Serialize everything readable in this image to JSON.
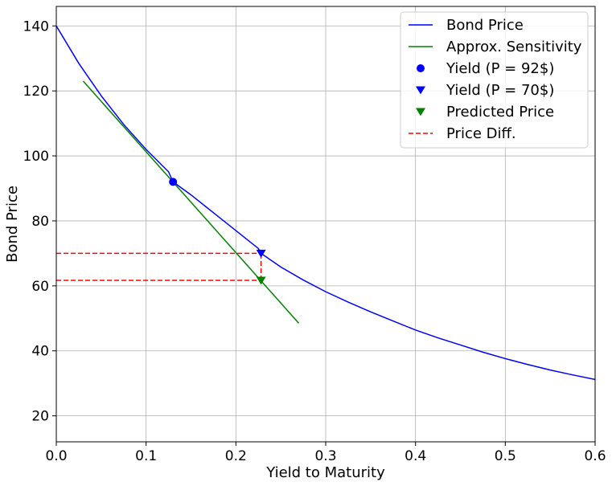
{
  "chart_data": {
    "type": "line",
    "title": "",
    "xlabel": "Yield to Maturity",
    "ylabel": "Bond Price",
    "xlim": [
      0.0,
      0.6
    ],
    "ylim": [
      12,
      146
    ],
    "xticks": [
      0.0,
      0.1,
      0.2,
      0.3,
      0.4,
      0.5,
      0.6
    ],
    "xtick_labels": [
      "0.0",
      "0.1",
      "0.2",
      "0.3",
      "0.4",
      "0.5",
      "0.6"
    ],
    "yticks": [
      20,
      40,
      60,
      80,
      100,
      120,
      140
    ],
    "ytick_labels": [
      "20",
      "40",
      "60",
      "80",
      "100",
      "120",
      "140"
    ],
    "grid": true,
    "legend_position": "top-right",
    "series": [
      {
        "name": "Bond Price",
        "kind": "line",
        "color": "#0000ff",
        "x": [
          0.0,
          0.025,
          0.05,
          0.075,
          0.1,
          0.125,
          0.13,
          0.15,
          0.175,
          0.2,
          0.225,
          0.228,
          0.25,
          0.275,
          0.3,
          0.325,
          0.35,
          0.375,
          0.4,
          0.425,
          0.45,
          0.475,
          0.5,
          0.525,
          0.55,
          0.575,
          0.6
        ],
        "y": [
          140.0,
          128.5,
          118.5,
          109.7,
          102.0,
          95.1,
          92.0,
          88.0,
          82.5,
          77.0,
          71.5,
          70.0,
          65.8,
          61.8,
          58.2,
          55.0,
          52.0,
          49.2,
          46.4,
          44.0,
          41.8,
          39.6,
          37.6,
          35.8,
          34.1,
          32.6,
          31.2
        ]
      },
      {
        "name": "Approx. Sensitivity",
        "kind": "line",
        "color": "#008000",
        "x": [
          0.03,
          0.27
        ],
        "y": [
          123.0,
          48.5
        ]
      },
      {
        "name": "Yield (P = 92$)",
        "kind": "marker",
        "marker": "circle",
        "color": "#0000ff",
        "x": [
          0.13
        ],
        "y": [
          92.0
        ]
      },
      {
        "name": "Yield (P = 70$)",
        "kind": "marker",
        "marker": "triangle-down",
        "color": "#0000ff",
        "x": [
          0.228
        ],
        "y": [
          70.0
        ]
      },
      {
        "name": "Predicted Price",
        "kind": "marker",
        "marker": "triangle-down",
        "color": "#008000",
        "x": [
          0.228
        ],
        "y": [
          61.7
        ]
      },
      {
        "name": "Price Diff.",
        "kind": "dashed",
        "color": "#ff0000",
        "segments": [
          {
            "x": [
              0.0,
              0.228
            ],
            "y": [
              70.0,
              70.0
            ]
          },
          {
            "x": [
              0.0,
              0.228
            ],
            "y": [
              61.7,
              61.7
            ]
          },
          {
            "x": [
              0.228,
              0.228
            ],
            "y": [
              61.7,
              70.0
            ]
          }
        ]
      }
    ]
  }
}
